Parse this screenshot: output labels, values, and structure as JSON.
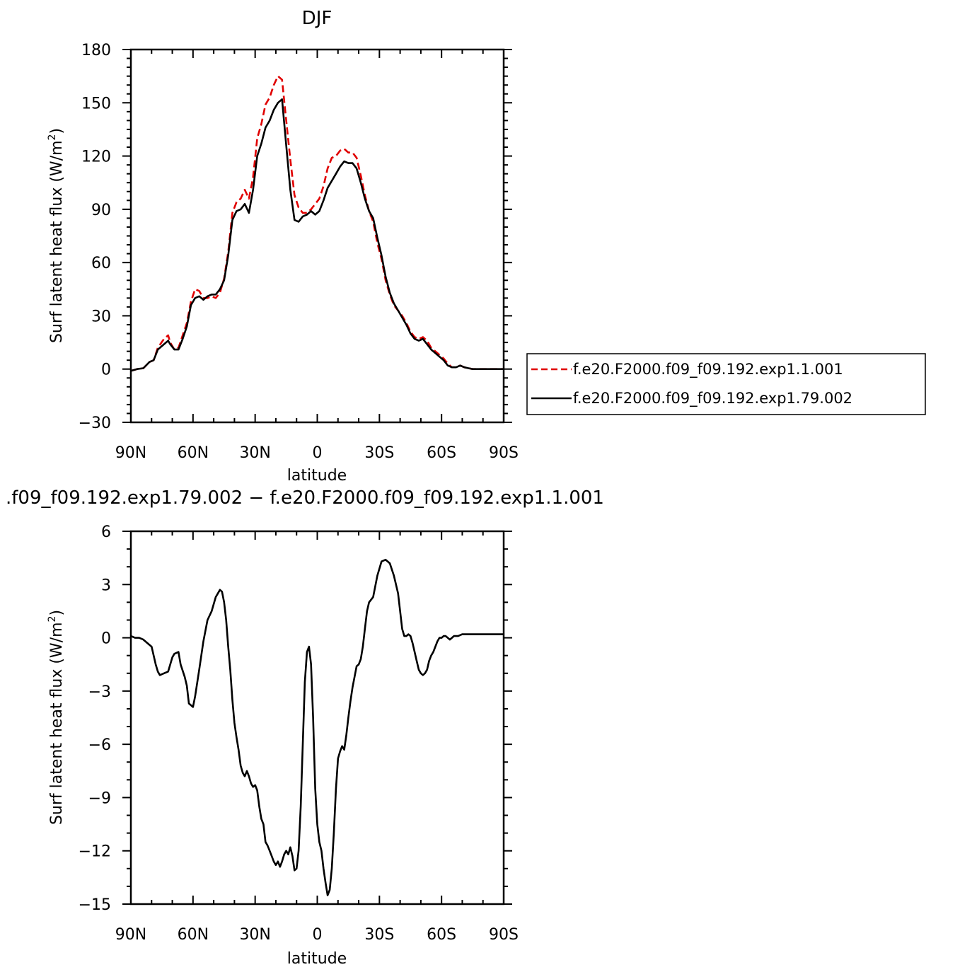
{
  "chart_data": [
    {
      "type": "line",
      "title": "DJF",
      "xlabel": "latitude",
      "ylabel": "Surf latent heat flux (W/m",
      "ylabel_sup": "2",
      "ylabel_tail": ")",
      "xlim": [
        90,
        -90
      ],
      "ylim": [
        -30,
        180
      ],
      "x_ticks": [
        90,
        60,
        30,
        0,
        -30,
        -60,
        -90
      ],
      "x_tick_labels": [
        "90N",
        "60N",
        "30N",
        "0",
        "30S",
        "60S",
        "90S"
      ],
      "y_ticks": [
        -30,
        0,
        30,
        60,
        90,
        120,
        150,
        180
      ],
      "y_tick_labels": [
        "−30",
        "0",
        "30",
        "60",
        "90",
        "120",
        "150",
        "180"
      ],
      "legend": "right",
      "series": [
        {
          "name": "f.e20.F2000.f09_f09.192.exp1.1.001",
          "color": "#e00000",
          "dash": "dashed",
          "x": [
            90,
            87,
            84,
            81,
            79,
            77,
            74,
            72,
            71,
            69,
            67,
            65,
            63,
            61,
            59,
            57,
            55,
            53,
            51,
            49,
            47,
            45,
            43,
            41,
            39,
            37,
            35,
            33,
            31,
            29,
            27,
            25,
            23,
            21,
            19,
            17,
            15,
            13,
            11,
            9,
            7,
            5,
            3,
            1,
            -1,
            -3,
            -5,
            -7,
            -9,
            -11,
            -13,
            -15,
            -17,
            -19,
            -21,
            -23,
            -25,
            -27,
            -29,
            -31,
            -33,
            -35,
            -37,
            -39,
            -41,
            -43,
            -45,
            -47,
            -49,
            -51,
            -53,
            -55,
            -57,
            -59,
            -61,
            -63,
            -65,
            -67,
            -69,
            -71,
            -73,
            -75,
            -77,
            -79,
            -81,
            -83,
            -85,
            -87,
            -89,
            -90
          ],
          "y": [
            -1,
            0,
            0.5,
            4,
            5,
            12,
            17,
            19,
            15,
            11,
            12,
            19,
            26,
            38,
            45,
            44,
            40,
            40,
            41,
            40,
            43,
            51,
            66,
            88,
            94,
            96,
            101,
            96,
            108,
            130,
            138,
            149,
            153,
            160,
            165,
            163,
            140,
            118,
            98,
            91,
            88,
            88,
            90,
            93,
            96,
            103,
            113,
            119,
            120,
            123,
            124,
            122,
            122,
            119,
            109,
            98,
            89,
            83,
            71,
            62,
            50,
            42,
            36,
            33,
            30,
            26,
            21,
            18,
            17,
            18,
            16,
            12,
            10,
            8,
            6,
            3,
            1,
            1,
            2,
            1,
            0.5,
            0,
            0,
            0,
            0,
            0,
            0,
            0,
            0,
            0
          ]
        },
        {
          "name": "f.e20.F2000.f09_f09.192.exp1.79.002",
          "color": "#000000",
          "dash": "solid",
          "x": [
            90,
            87,
            84,
            81,
            79,
            77,
            74,
            72,
            71,
            69,
            67,
            65,
            63,
            61,
            59,
            57,
            55,
            53,
            51,
            49,
            47,
            45,
            43,
            41,
            39,
            37,
            35,
            33,
            31,
            29,
            27,
            25,
            23,
            21,
            19,
            17,
            15,
            13,
            11,
            9,
            7,
            5,
            3,
            1,
            -1,
            -3,
            -5,
            -7,
            -9,
            -11,
            -13,
            -15,
            -17,
            -19,
            -21,
            -23,
            -25,
            -27,
            -29,
            -31,
            -33,
            -35,
            -37,
            -39,
            -41,
            -43,
            -45,
            -47,
            -49,
            -51,
            -53,
            -55,
            -57,
            -59,
            -61,
            -63,
            -65,
            -67,
            -69,
            -71,
            -73,
            -75,
            -77,
            -79,
            -81,
            -83,
            -85,
            -87,
            -89,
            -90
          ],
          "y": [
            -1,
            0,
            0.5,
            4,
            5,
            11,
            14,
            16,
            14,
            11,
            11,
            17,
            24,
            36,
            40,
            41,
            39,
            41,
            42,
            42,
            45,
            50,
            64,
            84,
            89,
            90,
            93,
            88,
            101,
            120,
            127,
            136,
            140,
            146,
            150,
            152,
            126,
            101,
            84,
            83,
            86,
            87,
            89,
            87,
            89,
            95,
            102,
            106,
            110,
            114,
            117,
            116,
            116,
            113,
            105,
            96,
            89,
            85,
            74,
            64,
            52,
            43,
            37,
            33,
            29,
            25,
            20,
            17,
            16,
            17,
            14,
            11,
            9,
            7,
            5,
            2,
            1,
            1,
            2,
            1,
            0.5,
            0,
            0,
            0,
            0,
            0,
            0,
            0,
            0,
            0
          ]
        }
      ]
    },
    {
      "type": "line",
      "title": ".f09_f09.192.exp1.79.002 − f.e20.F2000.f09_f09.192.exp1.1.001",
      "xlabel": "latitude",
      "ylabel": "Surf latent heat flux (W/m",
      "ylabel_sup": "2",
      "ylabel_tail": ")",
      "xlim": [
        90,
        -90
      ],
      "ylim": [
        -15,
        6
      ],
      "x_ticks": [
        90,
        60,
        30,
        0,
        -30,
        -60,
        -90
      ],
      "x_tick_labels": [
        "90N",
        "60N",
        "30N",
        "0",
        "30S",
        "60S",
        "90S"
      ],
      "y_ticks": [
        -15,
        -12,
        -9,
        -6,
        -3,
        0,
        3,
        6
      ],
      "y_tick_labels": [
        "−15",
        "−12",
        "−9",
        "−6",
        "−3",
        "0",
        "3",
        "6"
      ],
      "series": [
        {
          "color": "#000000",
          "dash": "solid",
          "x": [
            90,
            88,
            86,
            84,
            82,
            80,
            78,
            77,
            76,
            74,
            72,
            70,
            69,
            67,
            66,
            64,
            63,
            62,
            60,
            59,
            57,
            55,
            53,
            51,
            49,
            48,
            47,
            46,
            45,
            44,
            43,
            42,
            41,
            40,
            39,
            38,
            37,
            36,
            35,
            34,
            33,
            32,
            31,
            30,
            29,
            28,
            27,
            26,
            25,
            24,
            23,
            22,
            21,
            20,
            19,
            18,
            17,
            16,
            15,
            14,
            13,
            12,
            11,
            10,
            9,
            8,
            7,
            6,
            5,
            4,
            3,
            2,
            1,
            0,
            -1,
            -2,
            -3,
            -4,
            -5,
            -6,
            -7,
            -8,
            -9,
            -10,
            -11,
            -12,
            -13,
            -14,
            -15,
            -16,
            -17,
            -18,
            -19,
            -20,
            -21,
            -22,
            -23,
            -24,
            -25,
            -27,
            -29,
            -31,
            -33,
            -35,
            -37,
            -39,
            -40,
            -41,
            -42,
            -43,
            -44,
            -45,
            -46,
            -47,
            -48,
            -49,
            -50,
            -51,
            -52,
            -53,
            -54,
            -55,
            -56,
            -57,
            -58,
            -59,
            -60,
            -61,
            -62,
            -63,
            -64,
            -65,
            -66,
            -68,
            -70,
            -72,
            -74,
            -76,
            -78,
            -80,
            -82,
            -84,
            -86,
            -88,
            -90
          ],
          "y": [
            0.1,
            0,
            0,
            -0.1,
            -0.3,
            -0.5,
            -1.5,
            -1.9,
            -2.1,
            -2.0,
            -1.9,
            -1.1,
            -0.9,
            -0.8,
            -1.5,
            -2.2,
            -2.7,
            -3.7,
            -3.9,
            -3.3,
            -1.8,
            -0.2,
            1.0,
            1.5,
            2.3,
            2.5,
            2.7,
            2.6,
            2.0,
            1.0,
            -0.5,
            -1.8,
            -3.5,
            -4.8,
            -5.6,
            -6.3,
            -7.2,
            -7.6,
            -7.8,
            -7.5,
            -7.8,
            -8.2,
            -8.4,
            -8.3,
            -8.6,
            -9.5,
            -10.2,
            -10.5,
            -11.5,
            -11.7,
            -12.0,
            -12.3,
            -12.6,
            -12.8,
            -12.6,
            -12.9,
            -12.6,
            -12.2,
            -12.0,
            -12.2,
            -11.8,
            -12.3,
            -13.1,
            -13.0,
            -12.0,
            -9.5,
            -6.0,
            -2.5,
            -0.8,
            -0.5,
            -1.5,
            -4.5,
            -8.5,
            -10.5,
            -11.5,
            -12.0,
            -13.0,
            -13.8,
            -14.5,
            -14.2,
            -13.0,
            -11.0,
            -8.5,
            -6.8,
            -6.4,
            -6.1,
            -6.3,
            -5.5,
            -4.5,
            -3.6,
            -2.8,
            -2.2,
            -1.6,
            -1.5,
            -1.2,
            -0.5,
            0.5,
            1.5,
            2.0,
            2.3,
            3.5,
            4.3,
            4.4,
            4.2,
            3.5,
            2.5,
            1.5,
            0.5,
            0.1,
            0.1,
            0.2,
            0.1,
            -0.3,
            -0.8,
            -1.3,
            -1.8,
            -2.0,
            -2.1,
            -2.0,
            -1.8,
            -1.3,
            -1.0,
            -0.8,
            -0.5,
            -0.2,
            0.0,
            0.0,
            0.1,
            0.1,
            0.0,
            -0.1,
            0.0,
            0.1,
            0.1,
            0.2,
            0.2,
            0.2,
            0.2,
            0.2,
            0.2,
            0.2,
            0.2,
            0.2,
            0.2,
            0.2
          ]
        }
      ]
    }
  ]
}
